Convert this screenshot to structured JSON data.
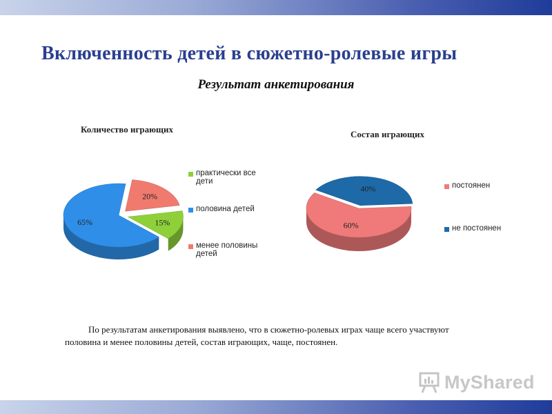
{
  "header": {
    "title": "Включенность детей в сюжетно-ролевые игры",
    "subtitle": "Результат анкетирования"
  },
  "chart_data": [
    {
      "type": "pie",
      "title": "Количество играющих",
      "categories": [
        "практически все дети",
        "половина детей",
        "менее половины детей"
      ],
      "values": [
        15,
        65,
        20
      ],
      "labels": [
        "15%",
        "65%",
        "20%"
      ],
      "colors": [
        "#8fd03a",
        "#2f8fe8",
        "#f07a6e"
      ],
      "legend_position": "right"
    },
    {
      "type": "pie",
      "title": "Состав играющих",
      "categories": [
        "постоянен",
        "не постоянен"
      ],
      "values": [
        60,
        40
      ],
      "labels": [
        "60%",
        "40%"
      ],
      "colors": [
        "#f07a7a",
        "#1e6aa8"
      ],
      "legend_position": "right"
    }
  ],
  "conclusion": "По результатам анкетирования выявлено, что в сюжетно-ролевых играх чаще всего участвуют половина и менее половины детей, состав играющих, чаще, постоянен.",
  "logo": {
    "text": "MyShared"
  }
}
